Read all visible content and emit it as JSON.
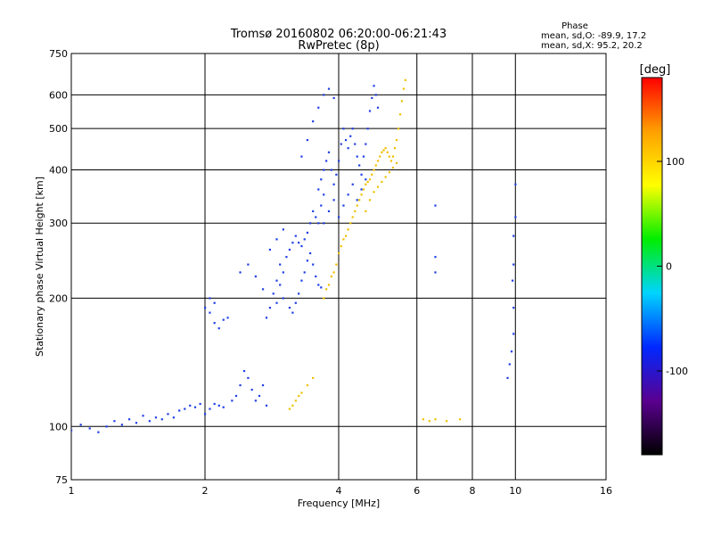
{
  "chart_data": {
    "type": "scatter",
    "title": "Tromsø 20160802 06:20:00-06:21:43",
    "subtitle": "RwPretec (8p)",
    "xlabel": "Frequency [MHz]",
    "ylabel": "Stationary phase Virtual Height [km]",
    "x_scale": "log",
    "y_scale": "log",
    "xlim": [
      1,
      16
    ],
    "ylim": [
      75,
      750
    ],
    "x_ticks": [
      1,
      2,
      4,
      6,
      8,
      10,
      16
    ],
    "y_ticks": [
      75,
      100,
      200,
      300,
      400,
      500,
      600,
      750
    ],
    "grid": true,
    "phase_box": {
      "title": "Phase",
      "line_o": "mean, sd,O: -89.9, 17.2",
      "line_x": "mean, sd,X:  95.2, 20.2"
    },
    "colorbar": {
      "label": "[deg]",
      "range": [
        -180,
        180
      ],
      "ticks": [
        100,
        0,
        -100
      ],
      "stops": [
        "#000000",
        "#5a0090",
        "#0028ff",
        "#00d4ff",
        "#00ee00",
        "#ffff00",
        "#ffa000",
        "#ff0000"
      ]
    },
    "series": [
      {
        "name": "O",
        "phase_deg": -90,
        "color": "#1f3fe6",
        "points": [
          [
            1.0,
            98
          ],
          [
            1.05,
            101
          ],
          [
            1.1,
            99
          ],
          [
            1.15,
            97
          ],
          [
            1.2,
            100
          ],
          [
            1.25,
            103
          ],
          [
            1.3,
            101
          ],
          [
            1.35,
            104
          ],
          [
            1.4,
            102
          ],
          [
            1.45,
            106
          ],
          [
            1.5,
            103
          ],
          [
            1.55,
            105
          ],
          [
            1.6,
            104
          ],
          [
            1.65,
            107
          ],
          [
            1.7,
            105
          ],
          [
            1.75,
            109
          ],
          [
            1.8,
            110
          ],
          [
            1.85,
            112
          ],
          [
            1.9,
            111
          ],
          [
            1.95,
            113
          ],
          [
            2.0,
            107
          ],
          [
            2.05,
            110
          ],
          [
            2.1,
            113
          ],
          [
            2.15,
            112
          ],
          [
            2.2,
            111
          ],
          [
            2.3,
            115
          ],
          [
            2.35,
            118
          ],
          [
            2.4,
            125
          ],
          [
            2.45,
            135
          ],
          [
            2.5,
            130
          ],
          [
            2.55,
            122
          ],
          [
            2.6,
            115
          ],
          [
            2.65,
            118
          ],
          [
            2.7,
            125
          ],
          [
            2.75,
            112
          ],
          [
            2.0,
            190
          ],
          [
            2.05,
            185
          ],
          [
            2.1,
            175
          ],
          [
            2.15,
            170
          ],
          [
            2.2,
            178
          ],
          [
            2.25,
            180
          ],
          [
            2.05,
            200
          ],
          [
            2.1,
            195
          ],
          [
            2.4,
            230
          ],
          [
            2.75,
            180
          ],
          [
            2.8,
            190
          ],
          [
            2.85,
            205
          ],
          [
            2.9,
            220
          ],
          [
            2.95,
            240
          ],
          [
            3.0,
            230
          ],
          [
            3.05,
            250
          ],
          [
            3.1,
            260
          ],
          [
            3.15,
            270
          ],
          [
            3.2,
            280
          ],
          [
            3.25,
            270
          ],
          [
            3.3,
            265
          ],
          [
            3.35,
            275
          ],
          [
            3.4,
            285
          ],
          [
            3.45,
            300
          ],
          [
            3.5,
            320
          ],
          [
            3.55,
            310
          ],
          [
            3.6,
            300
          ],
          [
            3.65,
            330
          ],
          [
            3.7,
            350
          ],
          [
            3.1,
            190
          ],
          [
            3.15,
            185
          ],
          [
            3.2,
            195
          ],
          [
            3.25,
            205
          ],
          [
            3.3,
            220
          ],
          [
            3.35,
            230
          ],
          [
            3.4,
            245
          ],
          [
            3.45,
            255
          ],
          [
            3.5,
            240
          ],
          [
            3.55,
            225
          ],
          [
            3.6,
            215
          ],
          [
            3.65,
            212
          ],
          [
            3.6,
            360
          ],
          [
            3.65,
            380
          ],
          [
            3.7,
            400
          ],
          [
            3.75,
            420
          ],
          [
            3.8,
            440
          ],
          [
            3.85,
            400
          ],
          [
            3.9,
            370
          ],
          [
            3.95,
            390
          ],
          [
            4.0,
            420
          ],
          [
            4.05,
            460
          ],
          [
            4.1,
            500
          ],
          [
            4.15,
            470
          ],
          [
            4.2,
            450
          ],
          [
            4.25,
            480
          ],
          [
            4.3,
            500
          ],
          [
            4.35,
            460
          ],
          [
            4.4,
            430
          ],
          [
            4.45,
            410
          ],
          [
            4.5,
            390
          ],
          [
            4.55,
            430
          ],
          [
            4.6,
            460
          ],
          [
            4.65,
            500
          ],
          [
            4.7,
            550
          ],
          [
            4.75,
            590
          ],
          [
            4.8,
            630
          ],
          [
            4.85,
            600
          ],
          [
            4.9,
            560
          ],
          [
            3.7,
            300
          ],
          [
            3.8,
            320
          ],
          [
            3.9,
            340
          ],
          [
            4.0,
            310
          ],
          [
            4.1,
            330
          ],
          [
            4.2,
            350
          ],
          [
            4.3,
            370
          ],
          [
            4.4,
            340
          ],
          [
            4.5,
            360
          ],
          [
            4.6,
            380
          ],
          [
            3.3,
            430
          ],
          [
            3.4,
            470
          ],
          [
            3.5,
            520
          ],
          [
            3.6,
            560
          ],
          [
            3.7,
            600
          ],
          [
            3.8,
            620
          ],
          [
            3.9,
            590
          ],
          [
            6.6,
            330
          ],
          [
            6.6,
            250
          ],
          [
            6.6,
            230
          ],
          [
            10.0,
            370
          ],
          [
            10.0,
            310
          ],
          [
            9.9,
            280
          ],
          [
            9.9,
            240
          ],
          [
            9.85,
            220
          ],
          [
            9.9,
            190
          ],
          [
            9.9,
            165
          ],
          [
            9.8,
            150
          ],
          [
            9.7,
            140
          ],
          [
            9.6,
            130
          ],
          [
            2.5,
            240
          ],
          [
            2.6,
            225
          ],
          [
            2.7,
            210
          ],
          [
            2.8,
            260
          ],
          [
            2.9,
            275
          ],
          [
            3.0,
            290
          ],
          [
            3.0,
            200
          ],
          [
            2.9,
            195
          ],
          [
            2.95,
            215
          ]
        ]
      },
      {
        "name": "X",
        "phase_deg": 95,
        "color": "#f0c000",
        "points": [
          [
            3.7,
            200
          ],
          [
            3.75,
            210
          ],
          [
            3.8,
            215
          ],
          [
            3.85,
            225
          ],
          [
            3.9,
            230
          ],
          [
            3.95,
            240
          ],
          [
            4.0,
            255
          ],
          [
            4.05,
            265
          ],
          [
            4.1,
            275
          ],
          [
            4.15,
            280
          ],
          [
            4.2,
            290
          ],
          [
            4.25,
            300
          ],
          [
            4.3,
            310
          ],
          [
            4.35,
            320
          ],
          [
            4.4,
            330
          ],
          [
            4.45,
            340
          ],
          [
            4.5,
            350
          ],
          [
            4.55,
            360
          ],
          [
            4.6,
            370
          ],
          [
            4.65,
            375
          ],
          [
            4.7,
            380
          ],
          [
            4.75,
            390
          ],
          [
            4.8,
            400
          ],
          [
            4.85,
            410
          ],
          [
            4.9,
            420
          ],
          [
            4.95,
            430
          ],
          [
            5.0,
            440
          ],
          [
            5.05,
            445
          ],
          [
            5.1,
            450
          ],
          [
            5.15,
            440
          ],
          [
            5.2,
            430
          ],
          [
            5.25,
            420
          ],
          [
            5.3,
            430
          ],
          [
            5.35,
            450
          ],
          [
            5.4,
            470
          ],
          [
            5.45,
            500
          ],
          [
            5.5,
            540
          ],
          [
            5.55,
            580
          ],
          [
            5.6,
            620
          ],
          [
            5.65,
            650
          ],
          [
            3.1,
            110
          ],
          [
            3.15,
            112
          ],
          [
            3.2,
            115
          ],
          [
            3.25,
            118
          ],
          [
            3.3,
            120
          ],
          [
            3.4,
            125
          ],
          [
            3.5,
            130
          ],
          [
            4.6,
            320
          ],
          [
            4.7,
            340
          ],
          [
            4.8,
            355
          ],
          [
            4.9,
            365
          ],
          [
            5.0,
            375
          ],
          [
            5.1,
            385
          ],
          [
            5.2,
            395
          ],
          [
            5.3,
            405
          ],
          [
            5.4,
            415
          ],
          [
            6.2,
            104
          ],
          [
            6.4,
            103
          ],
          [
            6.6,
            104
          ],
          [
            7.0,
            103
          ],
          [
            7.5,
            104
          ]
        ]
      }
    ]
  }
}
